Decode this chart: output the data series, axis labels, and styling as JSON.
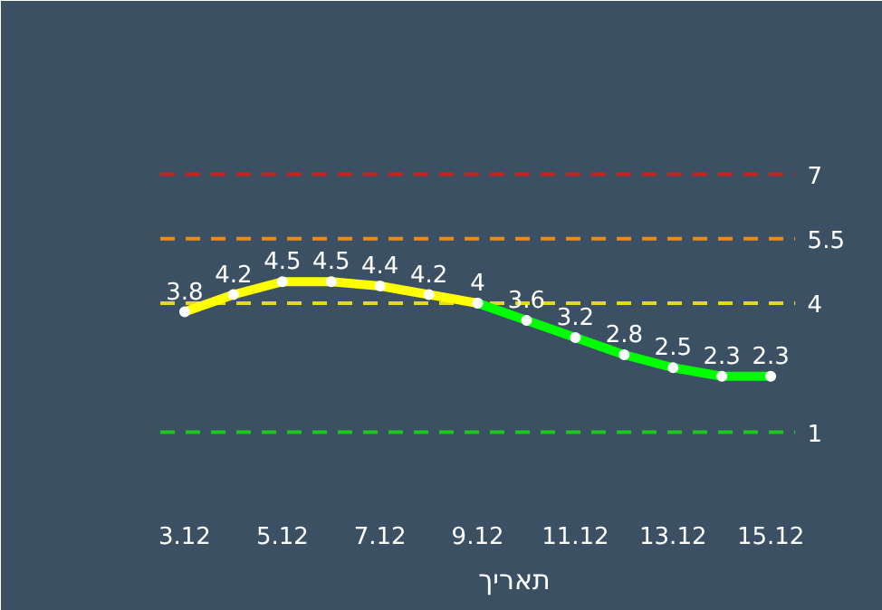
{
  "chart_data": {
    "type": "line",
    "xlabel": "תאריך",
    "categories": [
      "3.12",
      null,
      "5.12",
      null,
      "7.12",
      null,
      "9.12",
      null,
      "11.12",
      null,
      "13.12",
      null,
      "15.12"
    ],
    "series": [
      {
        "color": "#ffff00",
        "values": [
          3.8,
          4.2,
          4.5,
          4.5,
          4.4,
          4.2,
          4,
          null,
          null,
          null,
          null,
          null,
          null
        ],
        "value_labels": [
          "3.8",
          "4.2",
          "4.5",
          "4.5",
          "4.4",
          "4.2",
          "4",
          null,
          null,
          null,
          null,
          null,
          null
        ]
      },
      {
        "color": "#00ff00",
        "values": [
          null,
          null,
          null,
          null,
          null,
          null,
          4,
          3.6,
          3.2,
          2.8,
          2.5,
          2.3,
          2.3
        ],
        "value_labels": [
          null,
          null,
          null,
          null,
          null,
          null,
          null,
          "3.6",
          "3.2",
          "2.8",
          "2.5",
          "2.3",
          "2.3"
        ]
      }
    ],
    "ylim": [
      0,
      8
    ],
    "marker": "circle",
    "grid": false,
    "tick_labels": "x",
    "ref_lines": [
      {
        "axis": "y",
        "value": 7,
        "label": "7",
        "color": "#cc1f1f",
        "line_style": "dashed"
      },
      {
        "axis": "y",
        "value": 5.5,
        "label": "5.5",
        "color": "#ee8a17",
        "line_style": "dashed"
      },
      {
        "axis": "y",
        "value": 4,
        "label": "4",
        "color": "#e8d81a",
        "line_style": "dashed"
      },
      {
        "axis": "y",
        "value": 1,
        "label": "1",
        "color": "#19c819",
        "line_style": "dashed"
      }
    ]
  }
}
